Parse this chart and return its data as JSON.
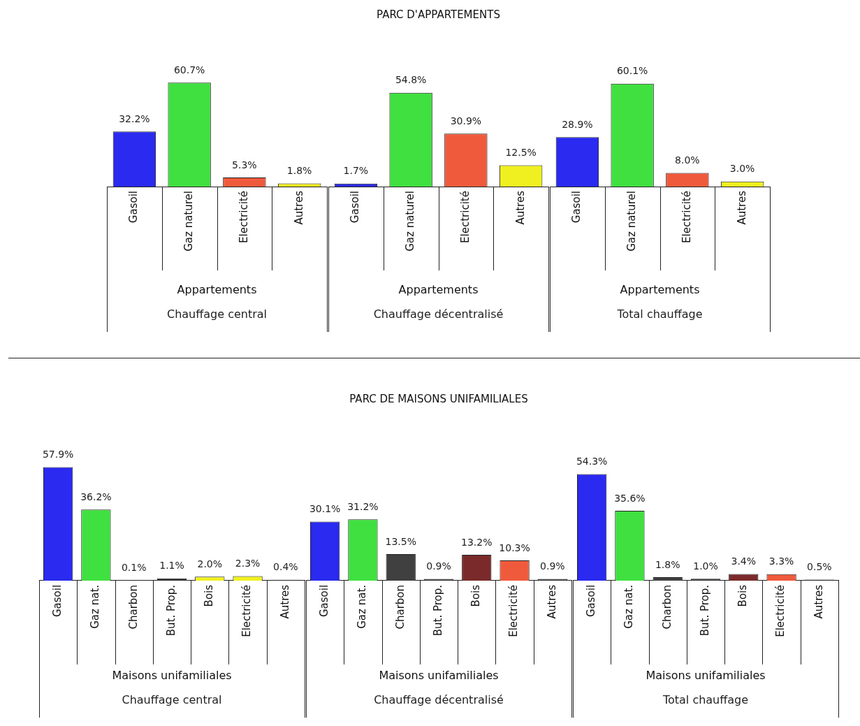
{
  "chart_data": [
    {
      "type": "bar",
      "categories": [
        "Gasoil",
        "Gaz naturel",
        "Electricité",
        "Autres"
      ],
      "values": [
        32.2,
        60.7,
        5.3,
        1.8
      ],
      "colors": [
        "#2a2af0",
        "#40e040",
        "#f05a3c",
        "#f0f020"
      ],
      "value_labels": [
        "32.2%",
        "60.7%",
        "5.3%",
        "1.8%"
      ],
      "xlabel": "Appartements",
      "annotations": [
        "Chauffage central"
      ]
    },
    {
      "type": "bar",
      "title": "PARC D'APPARTEMENTS",
      "categories": [
        "Gasoil",
        "Gaz naturel",
        "Electricité",
        "Autres"
      ],
      "values": [
        1.7,
        54.8,
        30.9,
        12.5
      ],
      "colors": [
        "#2a2af0",
        "#40e040",
        "#f05a3c",
        "#f0f020"
      ],
      "value_labels": [
        "1.7%",
        "54.8%",
        "30.9%",
        "12.5%"
      ],
      "xlabel": "Appartements",
      "annotations": [
        "Chauffage décentralisé"
      ]
    },
    {
      "type": "bar",
      "categories": [
        "Gasoil",
        "Gaz naturel",
        "Electricité",
        "Autres"
      ],
      "values": [
        28.9,
        60.1,
        8.0,
        3.0
      ],
      "colors": [
        "#2a2af0",
        "#40e040",
        "#f05a3c",
        "#f0f020"
      ],
      "value_labels": [
        "28.9%",
        "60.1%",
        "8.0%",
        "3.0%"
      ],
      "xlabel": "Appartements",
      "annotations": [
        "Total chauffage"
      ]
    },
    {
      "type": "bar",
      "categories": [
        "Gasoil",
        "Gaz nat.",
        "Charbon",
        "But. Prop.",
        "Bois",
        "Electricité",
        "Autres"
      ],
      "values": [
        57.9,
        36.2,
        0.1,
        1.1,
        2.0,
        2.3,
        0.4
      ],
      "colors": [
        "#2a2af0",
        "#40e040",
        "#404040",
        "#303030",
        "#f0f020",
        "#f0f020",
        "#303030"
      ],
      "value_labels": [
        "57.9%",
        "36.2%",
        "0.1%",
        "1.1%",
        "2.0%",
        "2.3%",
        "0.4%"
      ],
      "xlabel": "Maisons unifamiliales",
      "annotations": [
        "Chauffage central"
      ]
    },
    {
      "type": "bar",
      "title": "PARC DE MAISONS UNIFAMILIALES",
      "categories": [
        "Gasoil",
        "Gaz nat.",
        "Charbon",
        "But. Prop.",
        "Bois",
        "Electricité",
        "Autres"
      ],
      "values": [
        30.1,
        31.2,
        13.5,
        0.9,
        13.2,
        10.3,
        0.9
      ],
      "colors": [
        "#2a2af0",
        "#40e040",
        "#404040",
        "#303030",
        "#7a2a2a",
        "#f05a3c",
        "#303030"
      ],
      "value_labels": [
        "30.1%",
        "31.2%",
        "13.5%",
        "0.9%",
        "13.2%",
        "10.3%",
        "0.9%"
      ],
      "xlabel": "Maisons unifamiliales",
      "annotations": [
        "Chauffage décentralisé"
      ]
    },
    {
      "type": "bar",
      "categories": [
        "Gasoil",
        "Gaz nat.",
        "Charbon",
        "But. Prop.",
        "Bois",
        "Electricité",
        "Autres"
      ],
      "values": [
        54.3,
        35.6,
        1.8,
        1.0,
        3.4,
        3.3,
        0.5
      ],
      "colors": [
        "#2a2af0",
        "#40e040",
        "#404040",
        "#303030",
        "#7a2a2a",
        "#f05a3c",
        "#303030"
      ],
      "value_labels": [
        "54.3%",
        "35.6%",
        "1.8%",
        "1.0%",
        "3.4%",
        "3.3%",
        "0.5%"
      ],
      "xlabel": "Maisons unifamiliales",
      "annotations": [
        "Total chauffage"
      ]
    }
  ]
}
